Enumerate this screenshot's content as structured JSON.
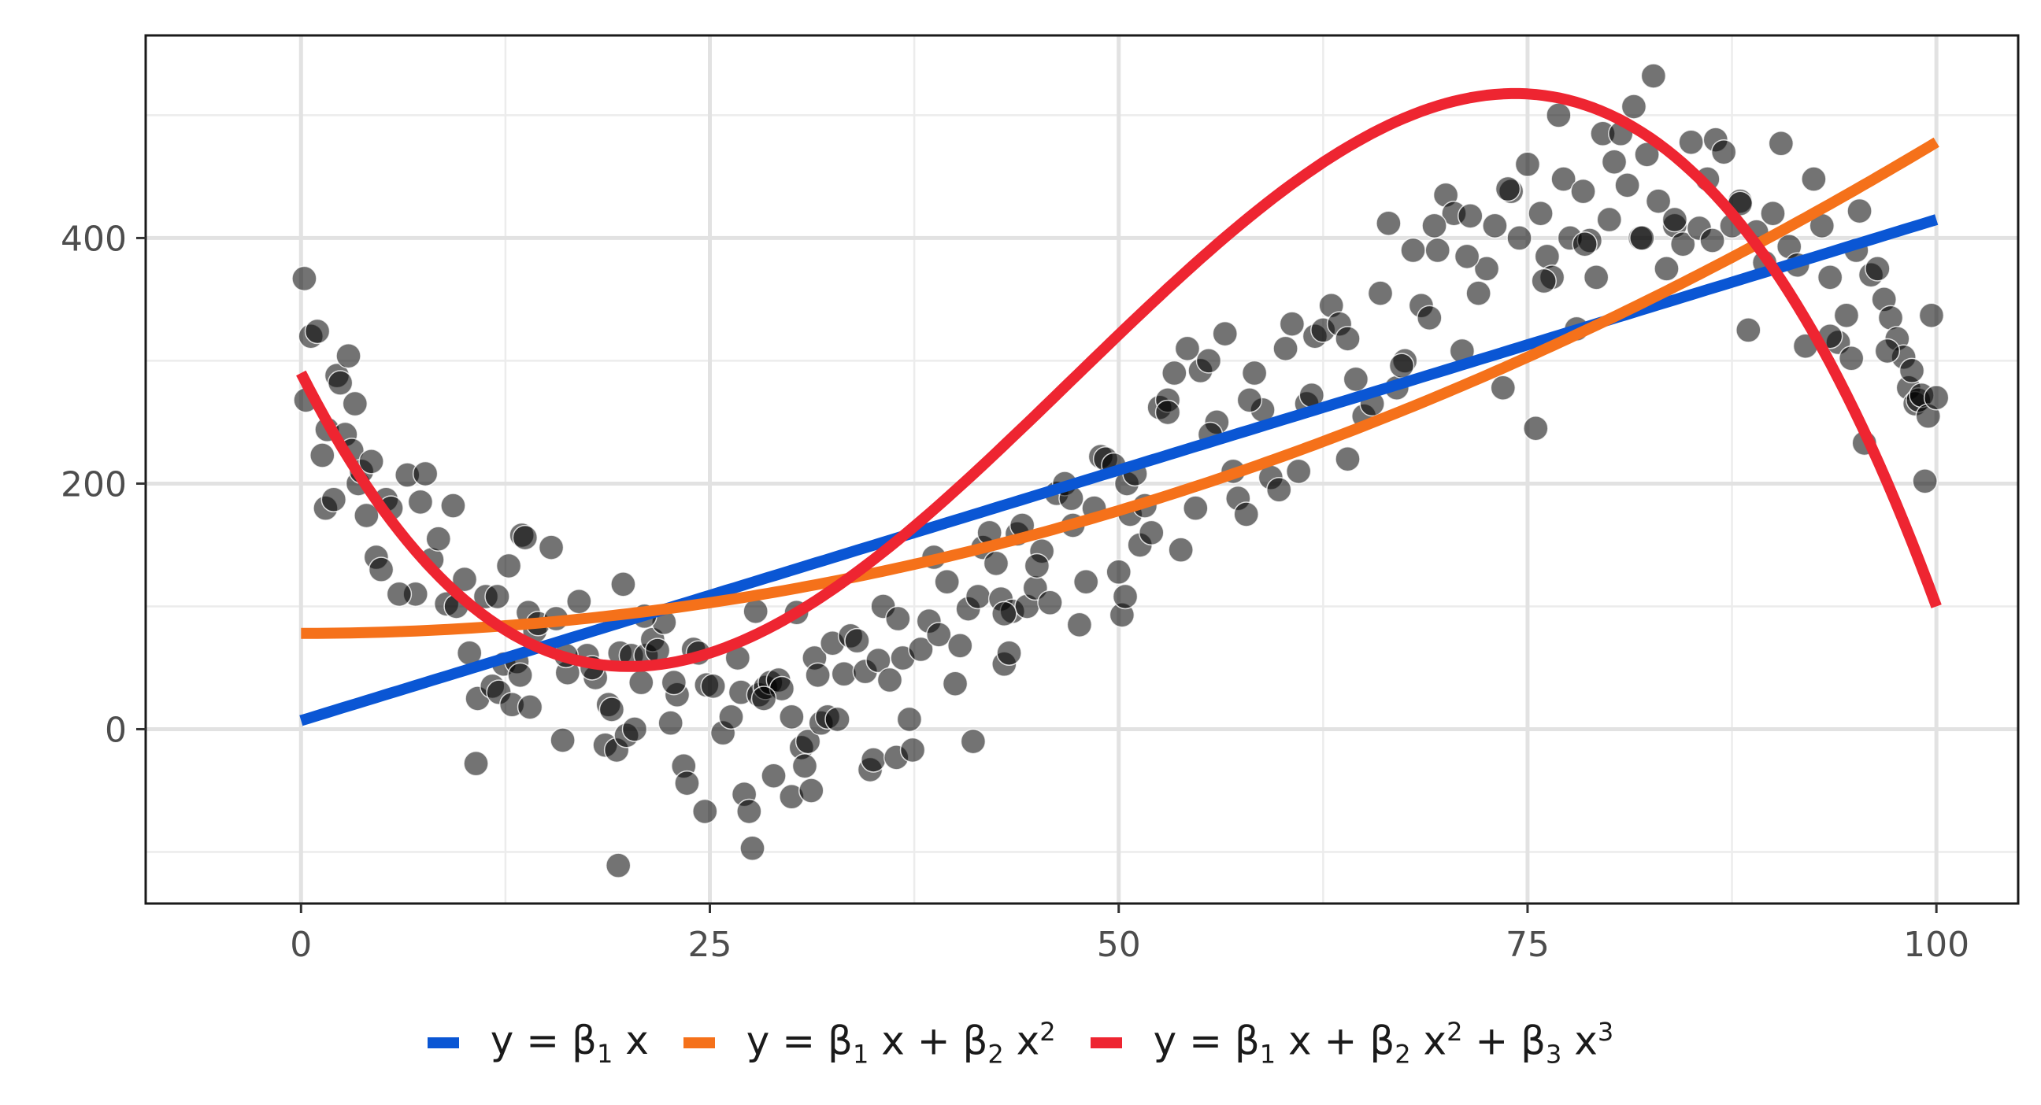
{
  "chart_data": {
    "type": "scatter",
    "xlim": [
      -9.5,
      105
    ],
    "ylim": [
      -142,
      565
    ],
    "x_ticks": [
      {
        "value": 0,
        "label": "0"
      },
      {
        "value": 25,
        "label": "25"
      },
      {
        "value": 50,
        "label": "50"
      },
      {
        "value": 75,
        "label": "75"
      },
      {
        "value": 100,
        "label": "100"
      }
    ],
    "y_ticks": [
      {
        "value": 0,
        "label": "0"
      },
      {
        "value": 200,
        "label": "200"
      },
      {
        "value": 400,
        "label": "400"
      }
    ],
    "minor_x_grid": [
      12.5,
      37.5,
      62.5,
      87.5
    ],
    "minor_y_grid": [
      -100,
      100,
      300,
      500
    ],
    "grid": true,
    "legend_position": "bottom",
    "point_color": "#000000",
    "point_alpha": 0.55,
    "fits": [
      {
        "label_text": "y = β1 x",
        "color": "#0a56d4",
        "coef": [
          7,
          4.08,
          0,
          0
        ]
      },
      {
        "label_text": "y = β1 x + β2 x2",
        "color": "#f5711a",
        "coef": [
          78,
          0,
          0.04,
          0
        ]
      },
      {
        "label_text": "y = β1 x + β2 x2 + β3 x3",
        "color": "#ee2531",
        "coef": [
          290,
          -26.2,
          0.83,
          -0.00587
        ]
      }
    ],
    "points": [
      [
        0.2,
        367
      ],
      [
        0.3,
        268
      ],
      [
        0.6,
        320
      ],
      [
        1.0,
        324
      ],
      [
        1.3,
        223
      ],
      [
        1.5,
        180
      ],
      [
        1.6,
        244
      ],
      [
        2.0,
        187
      ],
      [
        2.2,
        288
      ],
      [
        2.4,
        282
      ],
      [
        2.7,
        240
      ],
      [
        2.9,
        304
      ],
      [
        3.1,
        227
      ],
      [
        3.3,
        265
      ],
      [
        3.5,
        200
      ],
      [
        3.7,
        210
      ],
      [
        4.0,
        174
      ],
      [
        4.3,
        218
      ],
      [
        4.6,
        140
      ],
      [
        4.9,
        130
      ],
      [
        5.2,
        187
      ],
      [
        5.5,
        180
      ],
      [
        6.5,
        207
      ],
      [
        7.0,
        110
      ],
      [
        7.3,
        185
      ],
      [
        7.6,
        208
      ],
      [
        8.0,
        138
      ],
      [
        8.4,
        155
      ],
      [
        8.9,
        102
      ],
      [
        9.3,
        182
      ],
      [
        10.0,
        122
      ],
      [
        10.3,
        62
      ],
      [
        10.8,
        25
      ],
      [
        10.7,
        -28
      ],
      [
        11.3,
        108
      ],
      [
        11.7,
        35
      ],
      [
        12.1,
        30
      ],
      [
        12.4,
        53
      ],
      [
        12.7,
        133
      ],
      [
        12.9,
        20
      ],
      [
        13.2,
        55
      ],
      [
        13.4,
        44
      ],
      [
        13.5,
        158
      ],
      [
        13.7,
        156
      ],
      [
        13.9,
        95
      ],
      [
        14.0,
        18
      ],
      [
        14.3,
        80
      ],
      [
        14.5,
        86
      ],
      [
        15.3,
        148
      ],
      [
        15.6,
        90
      ],
      [
        16.0,
        -9
      ],
      [
        16.3,
        46
      ],
      [
        17.0,
        104
      ],
      [
        17.5,
        60
      ],
      [
        18.0,
        42
      ],
      [
        18.6,
        -13
      ],
      [
        18.8,
        20
      ],
      [
        19.0,
        16
      ],
      [
        19.3,
        -17
      ],
      [
        19.5,
        62
      ],
      [
        19.7,
        118
      ],
      [
        19.9,
        -5
      ],
      [
        20.2,
        60
      ],
      [
        20.4,
        0
      ],
      [
        20.8,
        38
      ],
      [
        21.1,
        60
      ],
      [
        21.5,
        73
      ],
      [
        21.8,
        64
      ],
      [
        22.2,
        87
      ],
      [
        22.6,
        5
      ],
      [
        19.4,
        -111
      ],
      [
        23.0,
        28
      ],
      [
        23.4,
        -30
      ],
      [
        23.6,
        -44
      ],
      [
        24.0,
        65
      ],
      [
        24.3,
        62
      ],
      [
        24.7,
        -67
      ],
      [
        24.8,
        36
      ],
      [
        25.2,
        35
      ],
      [
        25.8,
        -3
      ],
      [
        26.3,
        10
      ],
      [
        26.7,
        58
      ],
      [
        26.9,
        30
      ],
      [
        27.1,
        -53
      ],
      [
        27.4,
        -67
      ],
      [
        27.6,
        -97
      ],
      [
        27.8,
        96
      ],
      [
        28.0,
        28
      ],
      [
        28.4,
        34
      ],
      [
        28.7,
        38
      ],
      [
        28.9,
        -38
      ],
      [
        29.2,
        40
      ],
      [
        29.4,
        33
      ],
      [
        30.0,
        -55
      ],
      [
        30.3,
        95
      ],
      [
        30.6,
        -15
      ],
      [
        30.8,
        -30
      ],
      [
        31.0,
        -10
      ],
      [
        31.2,
        -50
      ],
      [
        31.4,
        58
      ],
      [
        31.6,
        44
      ],
      [
        31.8,
        5
      ],
      [
        32.2,
        10
      ],
      [
        32.5,
        70
      ],
      [
        32.8,
        8
      ],
      [
        33.2,
        45
      ],
      [
        33.6,
        76
      ],
      [
        34.0,
        72
      ],
      [
        34.5,
        47
      ],
      [
        34.8,
        -33
      ],
      [
        35.0,
        -25
      ],
      [
        35.3,
        56
      ],
      [
        35.6,
        100
      ],
      [
        36.0,
        40
      ],
      [
        36.4,
        -23
      ],
      [
        36.8,
        58
      ],
      [
        37.2,
        8
      ],
      [
        37.4,
        -17
      ],
      [
        37.9,
        65
      ],
      [
        38.4,
        88
      ],
      [
        38.7,
        140
      ],
      [
        39.0,
        77
      ],
      [
        39.5,
        120
      ],
      [
        40.0,
        37
      ],
      [
        40.3,
        68
      ],
      [
        40.8,
        98
      ],
      [
        41.1,
        -10
      ],
      [
        41.4,
        108
      ],
      [
        41.7,
        148
      ],
      [
        42.1,
        160
      ],
      [
        42.5,
        135
      ],
      [
        42.8,
        106
      ],
      [
        43.0,
        53
      ],
      [
        43.3,
        62
      ],
      [
        43.5,
        96
      ],
      [
        43.8,
        159
      ],
      [
        44.1,
        166
      ],
      [
        44.4,
        100
      ],
      [
        44.9,
        115
      ],
      [
        45.3,
        145
      ],
      [
        45.8,
        103
      ],
      [
        46.2,
        192
      ],
      [
        46.7,
        200
      ],
      [
        47.1,
        188
      ],
      [
        47.6,
        85
      ],
      [
        48.0,
        120
      ],
      [
        48.5,
        180
      ],
      [
        48.9,
        222
      ],
      [
        49.2,
        220
      ],
      [
        49.7,
        215
      ],
      [
        50.0,
        128
      ],
      [
        50.2,
        93
      ],
      [
        50.4,
        108
      ],
      [
        50.5,
        200
      ],
      [
        50.7,
        175
      ],
      [
        51.0,
        208
      ],
      [
        51.3,
        150
      ],
      [
        51.6,
        182
      ],
      [
        52.0,
        160
      ],
      [
        52.5,
        262
      ],
      [
        53.0,
        268
      ],
      [
        53.4,
        290
      ],
      [
        53.8,
        146
      ],
      [
        54.2,
        310
      ],
      [
        54.7,
        180
      ],
      [
        55.0,
        292
      ],
      [
        55.5,
        300
      ],
      [
        56.0,
        250
      ],
      [
        56.5,
        322
      ],
      [
        57.0,
        210
      ],
      [
        57.3,
        188
      ],
      [
        57.8,
        175
      ],
      [
        58.3,
        290
      ],
      [
        58.8,
        260
      ],
      [
        59.3,
        205
      ],
      [
        59.8,
        195
      ],
      [
        60.2,
        310
      ],
      [
        60.6,
        330
      ],
      [
        61.0,
        210
      ],
      [
        61.5,
        265
      ],
      [
        62.0,
        320
      ],
      [
        62.5,
        325
      ],
      [
        63.0,
        345
      ],
      [
        63.5,
        330
      ],
      [
        64.0,
        220
      ],
      [
        64.5,
        285
      ],
      [
        65.0,
        255
      ],
      [
        65.5,
        265
      ],
      [
        66.0,
        355
      ],
      [
        66.5,
        412
      ],
      [
        67.0,
        278
      ],
      [
        67.5,
        300
      ],
      [
        68.0,
        390
      ],
      [
        68.5,
        345
      ],
      [
        69.0,
        335
      ],
      [
        69.5,
        390
      ],
      [
        70.0,
        435
      ],
      [
        70.5,
        420
      ],
      [
        71.0,
        308
      ],
      [
        71.5,
        418
      ],
      [
        72.0,
        355
      ],
      [
        72.5,
        375
      ],
      [
        73.0,
        410
      ],
      [
        73.5,
        278
      ],
      [
        74.0,
        438
      ],
      [
        74.5,
        400
      ],
      [
        75.0,
        460
      ],
      [
        75.5,
        245
      ],
      [
        75.8,
        420
      ],
      [
        76.2,
        385
      ],
      [
        76.5,
        368
      ],
      [
        76.9,
        500
      ],
      [
        77.2,
        448
      ],
      [
        77.6,
        400
      ],
      [
        78.0,
        326
      ],
      [
        78.4,
        438
      ],
      [
        78.8,
        398
      ],
      [
        79.2,
        368
      ],
      [
        79.6,
        485
      ],
      [
        80.0,
        415
      ],
      [
        80.3,
        462
      ],
      [
        80.7,
        485
      ],
      [
        81.1,
        443
      ],
      [
        81.5,
        507
      ],
      [
        81.9,
        400
      ],
      [
        82.3,
        468
      ],
      [
        82.7,
        532
      ],
      [
        83.0,
        430
      ],
      [
        83.5,
        375
      ],
      [
        84.0,
        410
      ],
      [
        84.5,
        395
      ],
      [
        85.0,
        478
      ],
      [
        85.5,
        408
      ],
      [
        86.0,
        448
      ],
      [
        86.5,
        480
      ],
      [
        87.0,
        470
      ],
      [
        87.5,
        410
      ],
      [
        88.0,
        430
      ],
      [
        88.5,
        325
      ],
      [
        89.0,
        405
      ],
      [
        89.5,
        380
      ],
      [
        90.0,
        420
      ],
      [
        90.5,
        477
      ],
      [
        91.0,
        393
      ],
      [
        91.5,
        378
      ],
      [
        92.0,
        312
      ],
      [
        92.5,
        448
      ],
      [
        93.0,
        410
      ],
      [
        93.5,
        368
      ],
      [
        94.0,
        315
      ],
      [
        94.5,
        337
      ],
      [
        94.8,
        302
      ],
      [
        95.1,
        390
      ],
      [
        95.3,
        422
      ],
      [
        95.6,
        233
      ],
      [
        96.0,
        370
      ],
      [
        96.4,
        375
      ],
      [
        96.8,
        350
      ],
      [
        97.2,
        335
      ],
      [
        97.6,
        318
      ],
      [
        98.0,
        303
      ],
      [
        98.3,
        278
      ],
      [
        98.5,
        292
      ],
      [
        98.7,
        265
      ],
      [
        98.9,
        268
      ],
      [
        99.1,
        272
      ],
      [
        99.3,
        202
      ],
      [
        99.5,
        255
      ],
      [
        99.7,
        337
      ],
      [
        100.0,
        270
      ],
      [
        82.0,
        400
      ],
      [
        84.0,
        415
      ],
      [
        78.5,
        395
      ],
      [
        73.8,
        440
      ],
      [
        71.3,
        385
      ],
      [
        58.0,
        268
      ],
      [
        47.2,
        166
      ],
      [
        43.0,
        94
      ],
      [
        36.5,
        90
      ],
      [
        28.3,
        25
      ],
      [
        21.0,
        92
      ],
      [
        17.8,
        50
      ],
      [
        12.0,
        108
      ],
      [
        6.0,
        110
      ],
      [
        45.0,
        133
      ],
      [
        53.0,
        258
      ],
      [
        64.0,
        318
      ],
      [
        69.3,
        410
      ],
      [
        76.0,
        365
      ],
      [
        88.0,
        428
      ],
      [
        93.5,
        320
      ],
      [
        97.0,
        308
      ],
      [
        30.0,
        10
      ],
      [
        22.8,
        38
      ],
      [
        16.2,
        60
      ],
      [
        9.5,
        100
      ],
      [
        55.6,
        240
      ],
      [
        61.8,
        272
      ],
      [
        67.3,
        296
      ],
      [
        86.3,
        398
      ]
    ]
  },
  "legend": {
    "item1": {
      "pre": "y = β",
      "s1": "1",
      "post1": " x"
    },
    "item2": {
      "pre": "y = β",
      "s1": "1",
      "mid1": " x + β",
      "s2": "2",
      "mid2": " x",
      "p2": "2"
    },
    "item3": {
      "pre": "y = β",
      "s1": "1",
      "mid1": " x + β",
      "s2": "2",
      "mid2": " x",
      "p2": "2",
      "mid3": " + β",
      "s3": "3",
      "mid4": " x",
      "p3": "3"
    }
  }
}
